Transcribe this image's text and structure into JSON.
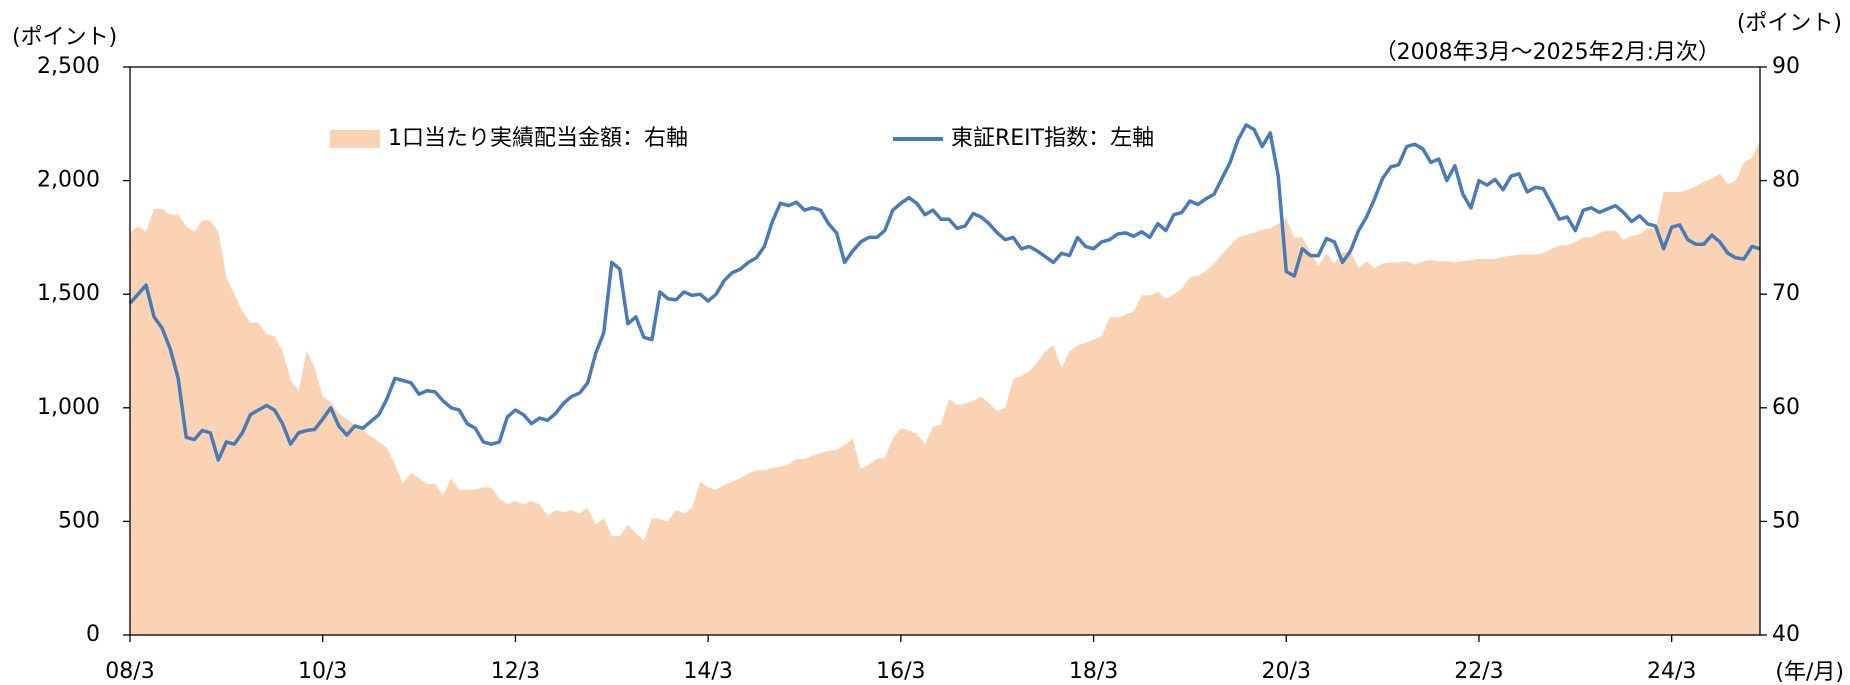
{
  "chart_data": {
    "type": "area-line",
    "subtitle": "（2008年3月～2025年2月:月次）",
    "y_label": "(ポイント)",
    "y2_label": "(ポイント)",
    "x_label": "(年/月)",
    "categories": [
      "08/3",
      null,
      null,
      null,
      null,
      null,
      null,
      null,
      null,
      null,
      null,
      null,
      null,
      null,
      null,
      null,
      null,
      null,
      null,
      null,
      null,
      null,
      null,
      null,
      "10/3",
      null,
      null,
      null,
      null,
      null,
      null,
      null,
      null,
      null,
      null,
      null,
      null,
      null,
      null,
      null,
      null,
      null,
      null,
      null,
      null,
      null,
      null,
      null,
      "12/3",
      null,
      null,
      null,
      null,
      null,
      null,
      null,
      null,
      null,
      null,
      null,
      null,
      null,
      null,
      null,
      null,
      null,
      null,
      null,
      null,
      null,
      null,
      null,
      "14/3",
      null,
      null,
      null,
      null,
      null,
      null,
      null,
      null,
      null,
      null,
      null,
      null,
      null,
      null,
      null,
      null,
      null,
      null,
      null,
      null,
      null,
      null,
      null,
      "16/3",
      null,
      null,
      null,
      null,
      null,
      null,
      null,
      null,
      null,
      null,
      null,
      null,
      null,
      null,
      null,
      null,
      null,
      null,
      null,
      null,
      null,
      null,
      null,
      "18/3",
      null,
      null,
      null,
      null,
      null,
      null,
      null,
      null,
      null,
      null,
      null,
      null,
      null,
      null,
      null,
      null,
      null,
      null,
      null,
      null,
      null,
      null,
      null,
      "20/3",
      null,
      null,
      null,
      null,
      null,
      null,
      null,
      null,
      null,
      null,
      null,
      null,
      null,
      null,
      null,
      null,
      null,
      null,
      null,
      null,
      null,
      null,
      null,
      "22/3",
      null,
      null,
      null,
      null,
      null,
      null,
      null,
      null,
      null,
      null,
      null,
      null,
      null,
      null,
      null,
      null,
      null,
      null,
      null,
      null,
      null,
      null,
      null,
      "24/3",
      null,
      null,
      null,
      null,
      null,
      null,
      null,
      null,
      null,
      null,
      null
    ],
    "series": [
      {
        "name": "1口当たり実績配当金額：右軸",
        "type": "area",
        "axis": "y2",
        "color": "#f9d3b3",
        "values": [
          75.4,
          76,
          75.5,
          77.5,
          77.5,
          77,
          77,
          76,
          75.5,
          76.5,
          76.5,
          75.5,
          71.5,
          70,
          68.5,
          67.5,
          67.5,
          66.5,
          66.3,
          65,
          62.5,
          61.5,
          65,
          63.5,
          61,
          60.5,
          59.5,
          59,
          58.5,
          58,
          57.5,
          57,
          56.5,
          55,
          53.3,
          54.3,
          53.8,
          53.3,
          53.3,
          52.3,
          53.8,
          52.8,
          52.8,
          52.8,
          53,
          53,
          52,
          51.5,
          51.8,
          51.5,
          51.8,
          51.5,
          50.5,
          51,
          50.8,
          51,
          50.7,
          51.2,
          49.7,
          50.3,
          48.7,
          48.7,
          49.7,
          49,
          48.3,
          50.3,
          50.2,
          50,
          51,
          50.7,
          51.2,
          53.5,
          53,
          52.8,
          53.2,
          53.5,
          53.8,
          54.2,
          54.5,
          54.5,
          54.7,
          54.8,
          55,
          55.5,
          55.5,
          55.8,
          56,
          56.2,
          56.3,
          56.7,
          57.3,
          54.6,
          55,
          55.5,
          55.6,
          57.3,
          58.2,
          58,
          57.7,
          56.8,
          58.3,
          58.5,
          60.8,
          60.2,
          60.4,
          60.6,
          61,
          60.4,
          59.7,
          60,
          62.5,
          62.8,
          63.2,
          64,
          65,
          65.5,
          63.5,
          65,
          65.5,
          65.7,
          66,
          66.3,
          68,
          67.9,
          68.2,
          68.5,
          69.9,
          69.9,
          70.2,
          69.6,
          70,
          70.5,
          71.5,
          71.6,
          72,
          72.7,
          73.5,
          74.3,
          75,
          75.2,
          75.4,
          75.7,
          75.8,
          76.2,
          76.7,
          75,
          75,
          73.7,
          72.5,
          73.6,
          72.7,
          73.7,
          73.7,
          72.3,
          72.9,
          72.3,
          72.7,
          72.8,
          72.8,
          72.9,
          72.6,
          72.9,
          73,
          72.9,
          72.9,
          72.8,
          72.9,
          73,
          73.1,
          73.1,
          73.1,
          73.3,
          73.4,
          73.5,
          73.5,
          73.5,
          73.6,
          74,
          74.3,
          74.3,
          74.6,
          75,
          75,
          75.4,
          75.6,
          75.6,
          74.8,
          75.1,
          75.3,
          75.8,
          75.7,
          79,
          79,
          79,
          79.2,
          79.5,
          79.9,
          80.2,
          80.6,
          79.7,
          80,
          81.6,
          82,
          83.5
        ]
      },
      {
        "name": "東証REIT指数：左軸",
        "type": "line",
        "axis": "y",
        "color": "#4a7bb7",
        "values": [
          1460,
          1500,
          1540,
          1400,
          1350,
          1260,
          1130,
          870,
          860,
          900,
          890,
          770,
          850,
          840,
          890,
          970,
          990,
          1010,
          990,
          930,
          840,
          890,
          900,
          905,
          950,
          1000,
          920,
          880,
          920,
          910,
          940,
          970,
          1040,
          1130,
          1120,
          1110,
          1060,
          1075,
          1070,
          1030,
          1000,
          990,
          930,
          910,
          850,
          840,
          850,
          960,
          990,
          970,
          930,
          955,
          945,
          975,
          1020,
          1050,
          1065,
          1110,
          1240,
          1330,
          1640,
          1610,
          1370,
          1400,
          1310,
          1300,
          1510,
          1480,
          1475,
          1510,
          1495,
          1500,
          1470,
          1500,
          1560,
          1595,
          1610,
          1640,
          1660,
          1710,
          1820,
          1900,
          1890,
          1905,
          1870,
          1880,
          1870,
          1810,
          1770,
          1640,
          1690,
          1730,
          1750,
          1750,
          1780,
          1870,
          1900,
          1925,
          1900,
          1850,
          1870,
          1830,
          1830,
          1790,
          1800,
          1855,
          1840,
          1810,
          1770,
          1740,
          1750,
          1700,
          1710,
          1690,
          1665,
          1640,
          1680,
          1670,
          1750,
          1710,
          1700,
          1730,
          1740,
          1765,
          1770,
          1755,
          1775,
          1750,
          1810,
          1780,
          1850,
          1860,
          1910,
          1895,
          1920,
          1940,
          2010,
          2080,
          2180,
          2245,
          2225,
          2150,
          2210,
          2020,
          1600,
          1580,
          1700,
          1670,
          1670,
          1745,
          1730,
          1640,
          1690,
          1780,
          1840,
          1920,
          2010,
          2060,
          2070,
          2150,
          2160,
          2140,
          2080,
          2095,
          2000,
          2065,
          1940,
          1880,
          2000,
          1980,
          2005,
          1960,
          2020,
          2030,
          1950,
          1970,
          1965,
          1900,
          1830,
          1840,
          1780,
          1870,
          1880,
          1860,
          1875,
          1890,
          1860,
          1820,
          1845,
          1810,
          1800,
          1700,
          1795,
          1805,
          1740,
          1720,
          1720,
          1760,
          1730,
          1680,
          1660,
          1655,
          1710,
          1700
        ]
      }
    ],
    "ylim": [
      0,
      2500
    ],
    "yticks": [
      0,
      500,
      {
        "value": 1000,
        "label": "1,000"
      },
      {
        "value": 1500,
        "label": "1,500"
      },
      {
        "value": 2000,
        "label": "2,000"
      },
      {
        "value": 2500,
        "label": "2,500"
      }
    ],
    "y2lim": [
      40,
      90
    ],
    "y2ticks": [
      40,
      50,
      60,
      70,
      80,
      90
    ],
    "grid": false,
    "legend": "top"
  }
}
